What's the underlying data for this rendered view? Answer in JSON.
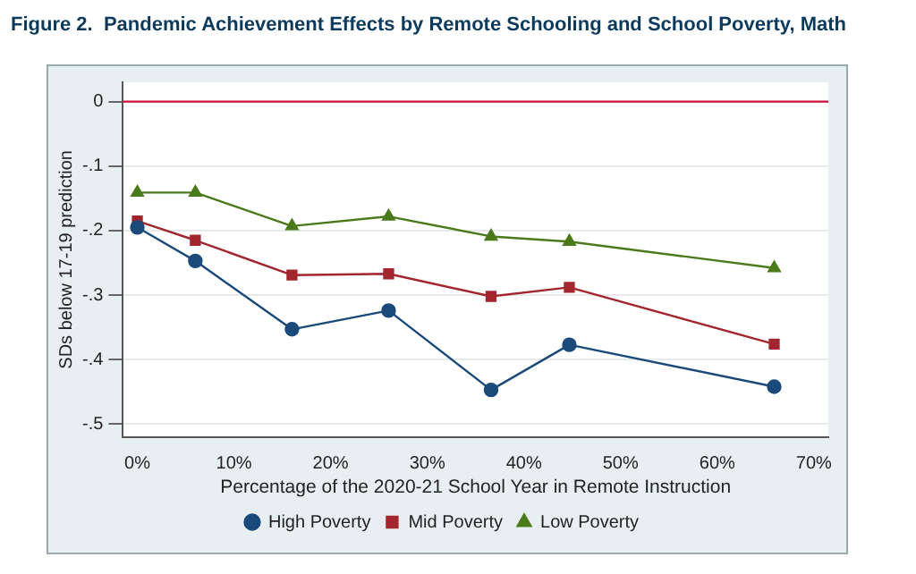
{
  "chart_data": {
    "type": "line",
    "title": "Figure 2.  Pandemic Achievement Effects by Remote Schooling and School Poverty, Math",
    "xlabel": "Percentage of the 2020-21 School Year in Remote Instruction",
    "ylabel": "SDs below 17-19 prediction",
    "x": [
      0,
      6,
      16,
      26,
      36.6,
      44.7,
      65.9
    ],
    "series": [
      {
        "name": "High Poverty",
        "color": "#1a4a7a",
        "marker": "circle",
        "values": [
          -0.195,
          -0.247,
          -0.353,
          -0.324,
          -0.447,
          -0.377,
          -0.442
        ]
      },
      {
        "name": "Mid Poverty",
        "color": "#a3262e",
        "marker": "square",
        "values": [
          -0.185,
          -0.215,
          -0.269,
          -0.267,
          -0.302,
          -0.288,
          -0.376
        ]
      },
      {
        "name": "Low Poverty",
        "color": "#4a7a1a",
        "marker": "triangle",
        "values": [
          -0.141,
          -0.141,
          -0.193,
          -0.178,
          -0.209,
          -0.217,
          -0.258
        ]
      }
    ],
    "xlim": [
      -1.5,
      71.5
    ],
    "xticks": [
      {
        "value": 0,
        "label": "0%"
      },
      {
        "value": 10,
        "label": "10%"
      },
      {
        "value": 20,
        "label": "20%"
      },
      {
        "value": 30,
        "label": "30%"
      },
      {
        "value": 40,
        "label": "40%"
      },
      {
        "value": 50,
        "label": "50%"
      },
      {
        "value": 60,
        "label": "60%"
      },
      {
        "value": 70,
        "label": "70%"
      }
    ],
    "ylim": [
      -0.52,
      0.03
    ],
    "yticks": [
      {
        "value": 0,
        "label": "0"
      },
      {
        "value": -0.1,
        "label": "-.1"
      },
      {
        "value": -0.2,
        "label": "-.2"
      },
      {
        "value": -0.3,
        "label": "-.3"
      },
      {
        "value": -0.4,
        "label": "-.4"
      },
      {
        "value": -0.5,
        "label": "-.5"
      }
    ],
    "ref_lines": [
      {
        "axis": "y",
        "value": 0,
        "color": "#d0103a"
      }
    ],
    "grid": "y",
    "legend": "bottom",
    "line_style": "solid"
  }
}
